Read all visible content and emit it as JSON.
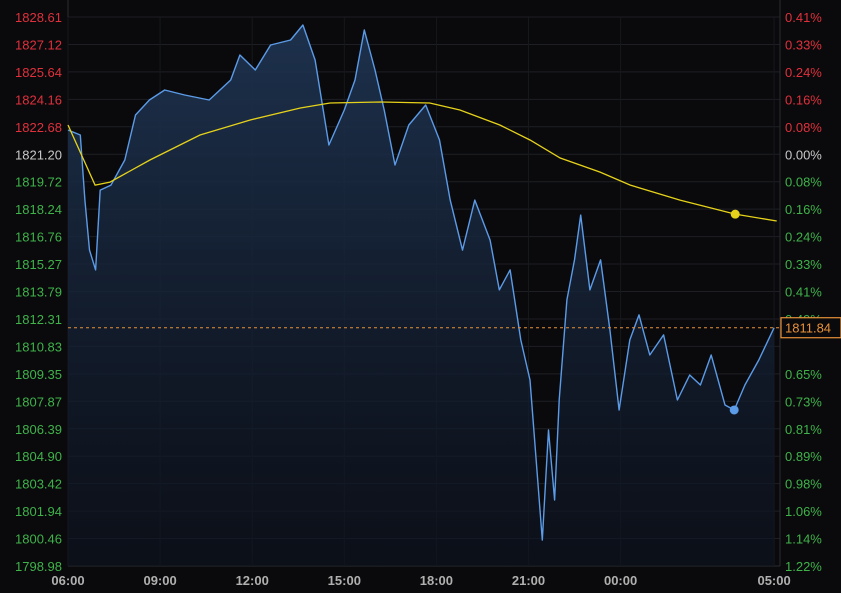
{
  "chart_data": {
    "type": "line",
    "title": "",
    "xlabel": "",
    "ylabel": "",
    "ylim": [
      1798.98,
      1828.61
    ],
    "grid": true,
    "x_ticks": [
      "06:00",
      "09:00",
      "12:00",
      "15:00",
      "18:00",
      "21:00",
      "00:00",
      "05:00"
    ],
    "left_ticks": [
      "1828.61",
      "1827.12",
      "1825.64",
      "1824.16",
      "1822.68",
      "1821.20",
      "1819.72",
      "1818.24",
      "1816.76",
      "1815.27",
      "1813.79",
      "1812.31",
      "1810.83",
      "1809.35",
      "1807.87",
      "1806.39",
      "1804.90",
      "1803.42",
      "1801.94",
      "1800.46",
      "1798.98"
    ],
    "right_ticks": [
      "0.41%",
      "0.33%",
      "0.24%",
      "0.16%",
      "0.08%",
      "0.00%",
      "0.08%",
      "0.16%",
      "0.24%",
      "0.33%",
      "0.41%",
      "0.49%",
      "",
      "0.65%",
      "0.73%",
      "0.81%",
      "0.89%",
      "0.98%",
      "1.06%",
      "1.14%",
      "1.22%"
    ],
    "reference_price": 1821.2,
    "current_price": 1811.84,
    "current_price_label": "1811.84",
    "colors": {
      "price_line": "#5b9be8",
      "moving_average": "#e6d21a",
      "up_label": "#e0303c",
      "down_label": "#3fb24a",
      "neutral_label": "#c8c8c8",
      "current_price": "#e8913a",
      "background": "#0a0a0c"
    },
    "series": [
      {
        "key": "price",
        "x": [
          "06:00",
          "06:24",
          "06:33",
          "06:42",
          "06:54",
          "07:03",
          "07:24",
          "07:51",
          "08:12",
          "08:39",
          "09:09",
          "09:48",
          "10:36",
          "11:18",
          "11:36",
          "12:06",
          "12:36",
          "13:15",
          "13:39",
          "14:03",
          "14:30",
          "15:00",
          "15:21",
          "15:39",
          "16:00",
          "16:18",
          "16:39",
          "17:06",
          "17:39",
          "18:06",
          "18:27",
          "18:51",
          "19:15",
          "19:45",
          "20:03",
          "20:24",
          "20:45",
          "21:03",
          "21:18",
          "21:27",
          "21:39",
          "21:51",
          "22:00",
          "22:15",
          "22:30",
          "22:42",
          "23:00",
          "23:21",
          "23:39",
          "23:57",
          "00:18",
          "00:36",
          "00:57",
          "01:24",
          "01:51",
          "02:15",
          "02:36",
          "02:57",
          "03:24",
          "03:42",
          "04:03",
          "04:30",
          "05:00"
        ],
        "y": [
          1822.51,
          1822.24,
          1818.73,
          1816.03,
          1814.96,
          1819.27,
          1819.54,
          1820.89,
          1823.32,
          1824.13,
          1824.67,
          1824.4,
          1824.13,
          1825.21,
          1826.56,
          1825.75,
          1827.1,
          1827.37,
          1828.18,
          1826.29,
          1821.7,
          1823.59,
          1825.21,
          1827.91,
          1825.75,
          1823.59,
          1820.62,
          1822.78,
          1823.86,
          1821.97,
          1818.73,
          1816.03,
          1818.73,
          1816.57,
          1813.88,
          1814.96,
          1811.18,
          1809.02,
          1803.62,
          1800.38,
          1806.32,
          1802.54,
          1807.94,
          1813.34,
          1815.5,
          1817.92,
          1813.88,
          1815.5,
          1811.72,
          1807.4,
          1811.18,
          1812.53,
          1810.37,
          1811.45,
          1807.94,
          1809.29,
          1808.75,
          1810.37,
          1807.67,
          1807.4,
          1808.75,
          1810.1,
          1811.84
        ],
        "marker": {
          "x": "03:42",
          "y": 1807.4
        }
      },
      {
        "key": "moving_average",
        "x": [
          "06:00",
          "06:53",
          "07:22",
          "08:40",
          "10:18",
          "11:56",
          "13:34",
          "14:32",
          "16:10",
          "17:47",
          "18:46",
          "20:04",
          "21:03",
          "22:02",
          "23:20",
          "00:19",
          "01:56",
          "03:44",
          "05:05"
        ],
        "y": [
          1822.78,
          1819.54,
          1819.7,
          1820.89,
          1822.24,
          1823.05,
          1823.7,
          1823.97,
          1824.02,
          1823.97,
          1823.59,
          1822.78,
          1821.97,
          1821.0,
          1820.24,
          1819.54,
          1818.73,
          1817.97,
          1817.6
        ],
        "marker": {
          "x": "03:44",
          "y": 1817.97
        }
      }
    ]
  }
}
